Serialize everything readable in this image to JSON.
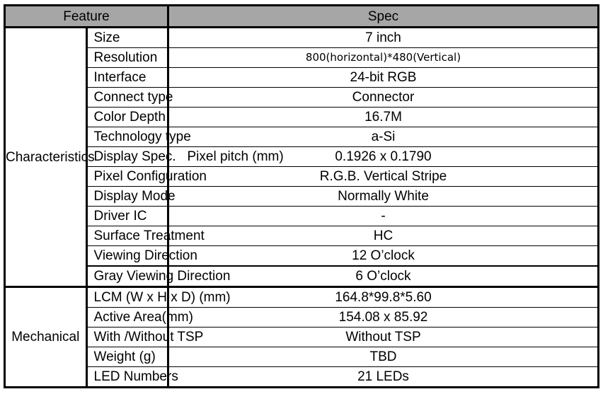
{
  "header": {
    "feature": "Feature",
    "spec": "Spec"
  },
  "groups": [
    {
      "name": "Characteristics",
      "rows": [
        {
          "feature": "Size",
          "spec": "7 inch"
        },
        {
          "feature": "Resolution",
          "spec": "800(horizontal)*480(Vertical)"
        },
        {
          "feature": "Interface",
          "spec": "24-bit RGB"
        },
        {
          "feature": "Connect type",
          "spec": "Connector"
        },
        {
          "feature": "Color Depth",
          "spec": "16.7M"
        },
        {
          "feature": "Technology type",
          "spec": "a-Si"
        },
        {
          "feature": "Display Spec.   Pixel pitch (mm)",
          "spec": "0.1926 x 0.1790"
        },
        {
          "feature": "Pixel Configuration",
          "spec": "R.G.B. Vertical Stripe"
        },
        {
          "feature": "Display Mode",
          "spec": "Normally White"
        },
        {
          "feature": "Driver IC",
          "spec": "-"
        },
        {
          "feature": "Surface Treatment",
          "spec": "HC"
        },
        {
          "feature": "Viewing Direction",
          "spec": "12 O’clock"
        },
        {
          "feature": "Gray Viewing Direction",
          "spec": "6 O’clock"
        }
      ]
    },
    {
      "name": "Mechanical",
      "rows": [
        {
          "feature": "LCM (W x H x D) (mm)",
          "spec": "164.8*99.8*5.60"
        },
        {
          "feature": "Active Area(mm)",
          "spec": "154.08 x 85.92"
        },
        {
          "feature": "With /Without TSP",
          "spec": "Without TSP"
        },
        {
          "feature": "Weight (g)",
          "spec": "TBD"
        },
        {
          "feature": "LED Numbers",
          "spec": "21 LEDs"
        }
      ]
    }
  ]
}
